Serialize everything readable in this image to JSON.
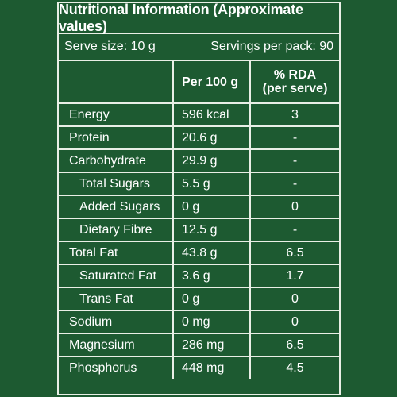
{
  "title": "Nutritional Information (Approximate values)",
  "serve_size": "Serve size: 10 g",
  "servings": "Servings per pack: 90",
  "headers": {
    "per100": "Per 100 g",
    "rda_line1": "% RDA",
    "rda_line2": "(per serve)"
  },
  "rows": [
    {
      "name": "Energy",
      "per100": "596 kcal",
      "rda": "3",
      "indent": false
    },
    {
      "name": "Protein",
      "per100": "20.6 g",
      "rda": "-",
      "indent": false
    },
    {
      "name": "Carbohydrate",
      "per100": "29.9 g",
      "rda": "-",
      "indent": false
    },
    {
      "name": "Total Sugars",
      "per100": "5.5 g",
      "rda": "-",
      "indent": true
    },
    {
      "name": "Added Sugars",
      "per100": "0 g",
      "rda": "0",
      "indent": true
    },
    {
      "name": "Dietary Fibre",
      "per100": "12.5 g",
      "rda": "-",
      "indent": true
    },
    {
      "name": "Total Fat",
      "per100": "43.8 g",
      "rda": "6.5",
      "indent": false
    },
    {
      "name": "Saturated Fat",
      "per100": "3.6 g",
      "rda": "1.7",
      "indent": true
    },
    {
      "name": "Trans Fat",
      "per100": "0 g",
      "rda": "0",
      "indent": true
    },
    {
      "name": "Sodium",
      "per100": "0 mg",
      "rda": "0",
      "indent": false
    },
    {
      "name": "Magnesium",
      "per100": "286 mg",
      "rda": "6.5",
      "indent": false
    },
    {
      "name": "Phosphorus",
      "per100": "448 mg",
      "rda": "4.5",
      "indent": false
    }
  ],
  "colors": {
    "background": "#1d5a31",
    "lines": "#e9efe6",
    "text": "#ffffff"
  }
}
